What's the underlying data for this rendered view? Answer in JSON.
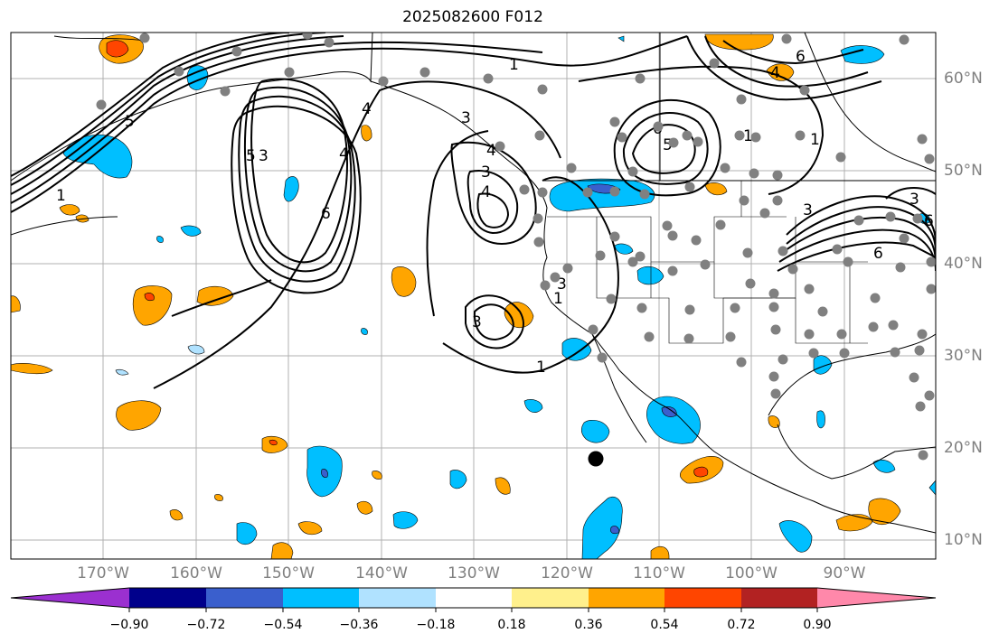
{
  "title": "2025082600 F012",
  "longitude_labels": [
    "170°W",
    "160°W",
    "150°W",
    "140°W",
    "130°W",
    "120°W",
    "110°W",
    "100°W",
    "90°W"
  ],
  "latitude_labels": [
    "60°N",
    "50°N",
    "40°N",
    "30°N",
    "20°N",
    "10°N"
  ],
  "colorbar": {
    "tick_labels": [
      "−0.90",
      "−0.72",
      "−0.54",
      "−0.36",
      "−0.18",
      "0.18",
      "0.36",
      "0.54",
      "0.72",
      "0.90"
    ],
    "colors": [
      "#9b30d0",
      "#00008b",
      "#3a5fcd",
      "#00bfff",
      "#b0e2ff",
      "#ffffff",
      "#fff08c",
      "#ffa500",
      "#ff4500",
      "#b22222",
      "#ff88aa"
    ]
  },
  "contour_labels": [
    "1",
    "4",
    "6",
    "5",
    "1",
    "5",
    "4",
    "6",
    "3",
    "4",
    "3",
    "4",
    "1",
    "3",
    "6",
    "5",
    "1",
    "3",
    "3",
    "3",
    "6",
    "1",
    "4",
    "6",
    "1",
    "3"
  ],
  "colors": {
    "land_outline": "#000000",
    "grid": "#b0b0b0",
    "station": "#808080",
    "label": "#808080"
  }
}
